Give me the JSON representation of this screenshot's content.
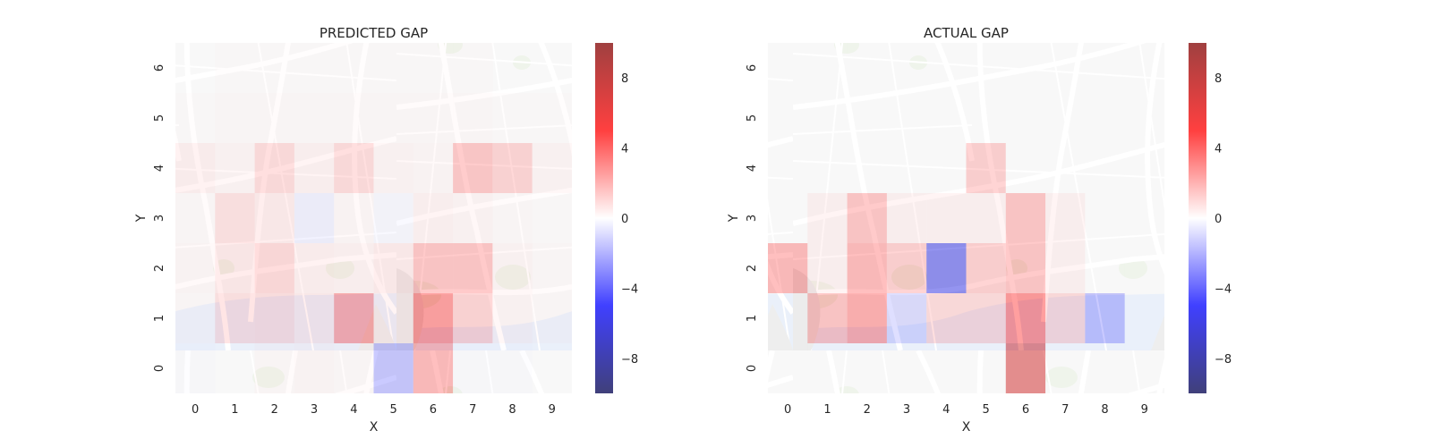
{
  "chart_data": [
    {
      "type": "heatmap",
      "title": "PREDICTED GAP",
      "xlabel": "X",
      "ylabel": "Y",
      "x_ticks": [
        "0",
        "1",
        "2",
        "3",
        "4",
        "5",
        "6",
        "7",
        "8",
        "9"
      ],
      "y_ticks": [
        "0",
        "1",
        "2",
        "3",
        "4",
        "5",
        "6"
      ],
      "background": "street map",
      "colormap": "seismic",
      "colorbar": {
        "ticks": [
          "8",
          "4",
          "0",
          "−4",
          "−8"
        ],
        "tick_values": [
          8,
          4,
          0,
          -4,
          -8
        ],
        "range": [
          -10,
          10
        ]
      },
      "rows_y_0_to_6": [
        [
          -0.1,
          0.0,
          0.2,
          0.3,
          0.2,
          -2.5,
          3.0,
          -0.1,
          -0.1,
          0.0
        ],
        [
          0.2,
          1.2,
          1.3,
          0.8,
          3.5,
          0.5,
          4.2,
          1.8,
          0.4,
          0.2
        ],
        [
          0.3,
          0.9,
          1.6,
          0.6,
          0.5,
          0.8,
          2.5,
          2.5,
          0.4,
          0.2
        ],
        [
          0.2,
          1.2,
          0.8,
          -0.6,
          0.3,
          -0.3,
          0.5,
          0.4,
          0.2,
          0.1
        ],
        [
          0.6,
          0.4,
          1.5,
          0.5,
          1.5,
          0.4,
          0.3,
          2.4,
          1.8,
          0.4
        ],
        [
          0.1,
          0.2,
          0.2,
          0.2,
          0.2,
          0.2,
          0.2,
          0.2,
          0.1,
          0.1
        ],
        [
          0.0,
          0.1,
          0.1,
          0.1,
          0.1,
          0.1,
          0.1,
          0.1,
          0.0,
          0.0
        ]
      ]
    },
    {
      "type": "heatmap",
      "title": "ACTUAL GAP",
      "xlabel": "X",
      "ylabel": "Y",
      "x_ticks": [
        "0",
        "1",
        "2",
        "3",
        "4",
        "5",
        "6",
        "7",
        "8",
        "9"
      ],
      "y_ticks": [
        "0",
        "1",
        "2",
        "3",
        "4",
        "5",
        "6"
      ],
      "background": "street map",
      "colormap": "seismic",
      "colorbar": {
        "ticks": [
          "8",
          "4",
          "0",
          "−4",
          "−8"
        ],
        "tick_values": [
          8,
          4,
          0,
          -4,
          -8
        ],
        "range": [
          -10,
          10
        ]
      },
      "rows_y_0_to_6": [
        [
          0.0,
          0.0,
          0.0,
          0.0,
          0.0,
          0.0,
          7.0,
          0.0,
          0.0,
          0.0
        ],
        [
          0.0,
          2.5,
          3.5,
          -1.5,
          1.5,
          1.5,
          4.5,
          1.5,
          -2.5,
          0.0
        ],
        [
          3.0,
          0.5,
          3.0,
          2.0,
          -6.0,
          2.0,
          2.5,
          0.5,
          0.0,
          0.0
        ],
        [
          0.0,
          0.5,
          2.5,
          0.5,
          0.5,
          0.5,
          2.5,
          0.5,
          0.0,
          0.0
        ],
        [
          0.0,
          0.0,
          0.0,
          0.0,
          0.0,
          2.0,
          0.0,
          0.0,
          0.0,
          0.0
        ],
        [
          0.0,
          0.0,
          0.0,
          0.0,
          0.0,
          0.0,
          0.0,
          0.0,
          0.0,
          0.0
        ],
        [
          0.0,
          0.0,
          0.0,
          0.0,
          0.0,
          0.0,
          0.0,
          0.0,
          0.0,
          0.0
        ]
      ]
    }
  ]
}
